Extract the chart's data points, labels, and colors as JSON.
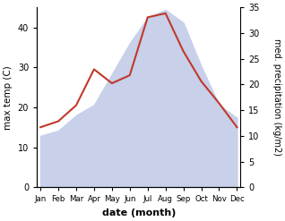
{
  "months": [
    "Jan",
    "Feb",
    "Mar",
    "Apr",
    "May",
    "Jun",
    "Jul",
    "Aug",
    "Sep",
    "Oct",
    "Nov",
    "Dec"
  ],
  "max_temp": [
    15.0,
    16.5,
    20.5,
    29.5,
    26.0,
    28.0,
    42.5,
    43.5,
    34.0,
    26.5,
    21.0,
    15.0
  ],
  "precipitation": [
    10.0,
    11.0,
    14.0,
    16.0,
    22.0,
    28.0,
    33.0,
    34.5,
    32.0,
    23.5,
    16.0,
    13.5
  ],
  "temp_color": "#c0392b",
  "precip_fill_color": "#c8d0ea",
  "temp_ylim": [
    0,
    45
  ],
  "precip_ylim": [
    0,
    35
  ],
  "temp_yticks": [
    0,
    10,
    20,
    30,
    40
  ],
  "precip_yticks": [
    0,
    5,
    10,
    15,
    20,
    25,
    30,
    35
  ],
  "xlabel": "date (month)",
  "ylabel_left": "max temp (C)",
  "ylabel_right": "med. precipitation (kg/m2)"
}
